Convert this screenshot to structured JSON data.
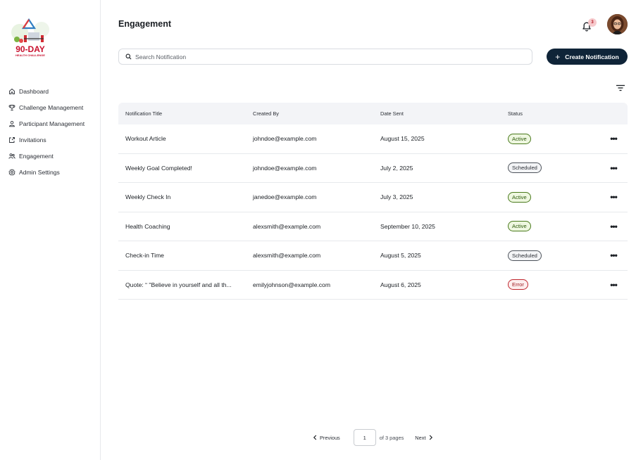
{
  "logo": {
    "line1": "90-DAY",
    "line2": "HEALTH CHALLENGE",
    "brand_color": "#c8102e"
  },
  "sidebar": {
    "items": [
      {
        "label": "Dashboard",
        "icon": "home-icon"
      },
      {
        "label": "Challenge Management",
        "icon": "trophy-icon"
      },
      {
        "label": "Participant Management",
        "icon": "user-icon"
      },
      {
        "label": "Invitations",
        "icon": "share-icon"
      },
      {
        "label": "Engagement",
        "icon": "users-icon"
      },
      {
        "label": "Admin Settings",
        "icon": "gear-icon"
      }
    ]
  },
  "header": {
    "title": "Engagement",
    "notification_count": "3"
  },
  "search": {
    "placeholder": "Search Notification"
  },
  "actions": {
    "create_label": "Create Notification"
  },
  "table": {
    "columns": [
      "Notification Title",
      "Created By",
      "Date Sent",
      "Status"
    ],
    "rows": [
      {
        "title": "Workout Article",
        "created_by": "johndoe@example.com",
        "date": "August 15, 2025",
        "status": "Active"
      },
      {
        "title": "Weekly Goal Completed!",
        "created_by": "johndoe@example.com",
        "date": "July 2, 2025",
        "status": "Scheduled"
      },
      {
        "title": "Weekly Check In",
        "created_by": "janedoe@example.com",
        "date": "July 3, 2025",
        "status": "Active"
      },
      {
        "title": "Health Coaching",
        "created_by": "alexsmith@example.com",
        "date": "September 10, 2025",
        "status": "Active"
      },
      {
        "title": "Check-in Time",
        "created_by": "alexsmith@example.com",
        "date": "August 5, 2025",
        "status": "Scheduled"
      },
      {
        "title": "Quote: “ \"Believe in yourself and all th...",
        "created_by": "emilyjohnson@example.com",
        "date": "August 6, 2025",
        "status": "Error"
      }
    ],
    "row_action_label": "•••"
  },
  "pagination": {
    "previous": "Previous",
    "current_page": "1",
    "of_pages": "of 3 pages",
    "next": "Next"
  },
  "colors": {
    "primary": "#0f2438",
    "active": "#2c5a0a",
    "scheduled": "#2b2f36",
    "error": "#9d1a20"
  }
}
